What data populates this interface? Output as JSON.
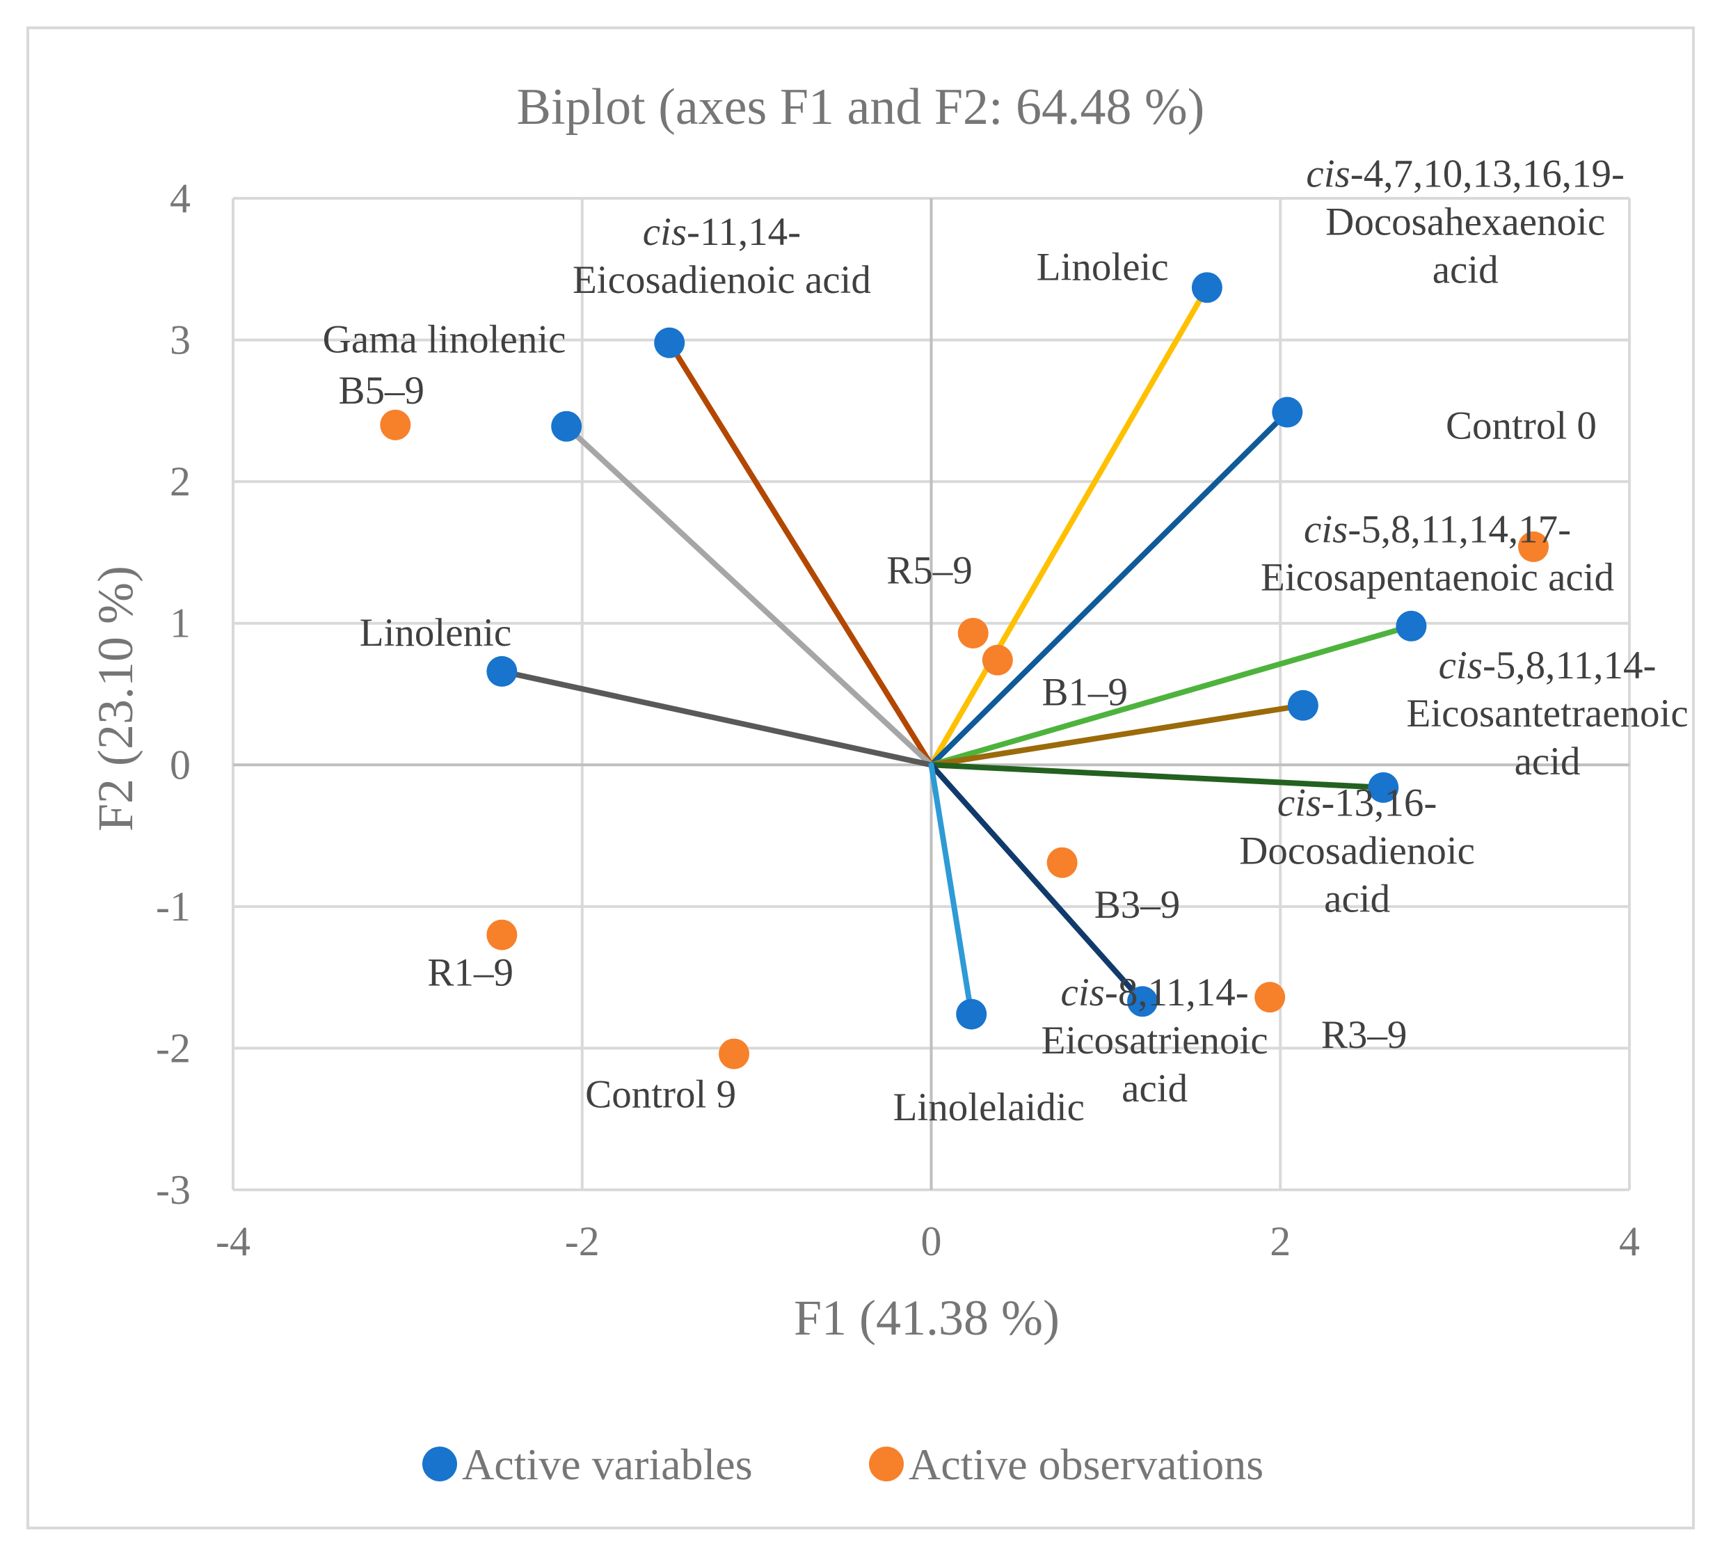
{
  "chart_data": {
    "type": "scatter",
    "title": "Biplot (axes F1 and F2: 64.48 %)",
    "xlabel": "F1 (41.38 %)",
    "ylabel": "F2 (23.10 %)",
    "xlim": [
      -4,
      4
    ],
    "ylim": [
      -3,
      4
    ],
    "xticks": [
      "-4",
      "-2",
      "0",
      "2",
      "4"
    ],
    "yticks": [
      "4",
      "3",
      "2",
      "1",
      "0",
      "-1",
      "-2",
      "-3"
    ],
    "grid": true,
    "legend_position": "bottom",
    "legend": [
      "Active variables",
      "Active observations"
    ],
    "colors": {
      "variables": "#1874cd",
      "observations": "#f7802b",
      "axis": "#bfbfbf",
      "grid": "#d9d9d9"
    },
    "variables": [
      {
        "name": "Linoleic",
        "label_lines": [
          {
            "t": "Linoleic"
          }
        ],
        "x": 1.58,
        "y": 3.37,
        "color": "#ffc000",
        "anchor": "end",
        "ox": -0.22,
        "oy": 0.15
      },
      {
        "name": "cis-4,7,10,13,16,19-Docosahexaenoic acid",
        "label_lines": [
          {
            "i": "cis",
            "t": "-4,7,10,13,16,19-"
          },
          {
            "t": "Docosahexaenoic"
          },
          {
            "t": "acid"
          }
        ],
        "x": 2.04,
        "y": 2.49,
        "color": "#0f5a99",
        "anchor": "middle",
        "ox": 1.02,
        "oy": 1.35
      },
      {
        "name": "cis-11,14-Eicosadienoic acid",
        "label_lines": [
          {
            "i": "cis",
            "t": "-11,14-"
          },
          {
            "t": "Eicosadienoic acid"
          }
        ],
        "x": -1.5,
        "y": 2.98,
        "color": "#b34700",
        "anchor": "middle",
        "ox": 0.3,
        "oy": 0.62
      },
      {
        "name": "Gama linolenic",
        "label_lines": [
          {
            "t": "Gama linolenic"
          }
        ],
        "x": -2.09,
        "y": 2.39,
        "color": "#a6a6a6",
        "anchor": "middle",
        "ox": -0.7,
        "oy": 0.62
      },
      {
        "name": "Linolenic",
        "label_lines": [
          {
            "t": "Linolenic"
          }
        ],
        "x": -2.46,
        "y": 0.66,
        "color": "#595959",
        "anchor": "middle",
        "ox": -0.38,
        "oy": 0.28
      },
      {
        "name": "cis-5,8,11,14,17-Eicosapentaenoic acid",
        "label_lines": [
          {
            "i": "cis",
            "t": "-5,8,11,14,17-"
          },
          {
            "t": "Eicosapentaenoic acid"
          }
        ],
        "x": 2.75,
        "y": 0.98,
        "color": "#4db33d",
        "anchor": "middle",
        "ox": 0.15,
        "oy": 0.52
      },
      {
        "name": "cis-5,8,11,14-Eicosantetraenoic acid",
        "label_lines": [
          {
            "i": "cis",
            "t": "-5,8,11,14-"
          },
          {
            "t": "Eicosantetraenoic"
          },
          {
            "t": "acid"
          }
        ],
        "x": 2.13,
        "y": 0.42,
        "color": "#9b6a0a",
        "anchor": "middle",
        "ox": 1.4,
        "oy": -0.05
      },
      {
        "name": "cis-13,16-Docosadienoic acid",
        "label_lines": [
          {
            "i": "cis",
            "t": "-13,16-"
          },
          {
            "t": "Docosadienoic"
          },
          {
            "t": "acid"
          }
        ],
        "x": 2.59,
        "y": -0.16,
        "color": "#23611f",
        "anchor": "middle",
        "ox": -0.15,
        "oy": -0.44
      },
      {
        "name": "cis-8,11,14-Eicosatrienoic acid",
        "label_lines": [
          {
            "i": "cis",
            "t": "-8,11,14-"
          },
          {
            "t": "Eicosatrienoic"
          },
          {
            "t": "acid"
          }
        ],
        "x": 1.21,
        "y": -1.67,
        "color": "#103a6b",
        "anchor": "middle",
        "ox": 0.07,
        "oy": -0.27
      },
      {
        "name": "Linolelaidic",
        "label_lines": [
          {
            "t": "Linolelaidic"
          }
        ],
        "x": 0.23,
        "y": -1.76,
        "color": "#2e9ad6",
        "anchor": "middle",
        "ox": 0.1,
        "oy": -0.65
      }
    ],
    "observations": [
      {
        "name": "B5–9",
        "x": -3.07,
        "y": 2.4,
        "ox": -0.08,
        "oy": 0.25,
        "anchor": "middle"
      },
      {
        "name": "R5–9",
        "x": 0.24,
        "y": 0.93,
        "ox": -0.25,
        "oy": 0.45,
        "anchor": "middle"
      },
      {
        "name": "B1–9",
        "x": 0.38,
        "y": 0.74,
        "ox": 0.5,
        "oy": -0.22,
        "anchor": "middle"
      },
      {
        "name": "Control 0",
        "x": 3.45,
        "y": 1.54,
        "ox": -0.07,
        "oy": 0.86,
        "anchor": "middle"
      },
      {
        "name": "B3–9",
        "x": 0.75,
        "y": -0.69,
        "ox": 0.43,
        "oy": -0.29,
        "anchor": "middle"
      },
      {
        "name": "R1–9",
        "x": -2.46,
        "y": -1.2,
        "ox": -0.18,
        "oy": -0.26,
        "anchor": "middle"
      },
      {
        "name": "Control 9",
        "x": -1.13,
        "y": -2.04,
        "ox": -0.42,
        "oy": -0.28,
        "anchor": "middle"
      },
      {
        "name": "R3–9",
        "x": 1.94,
        "y": -1.64,
        "ox": 0.54,
        "oy": -0.26,
        "anchor": "middle"
      }
    ]
  }
}
